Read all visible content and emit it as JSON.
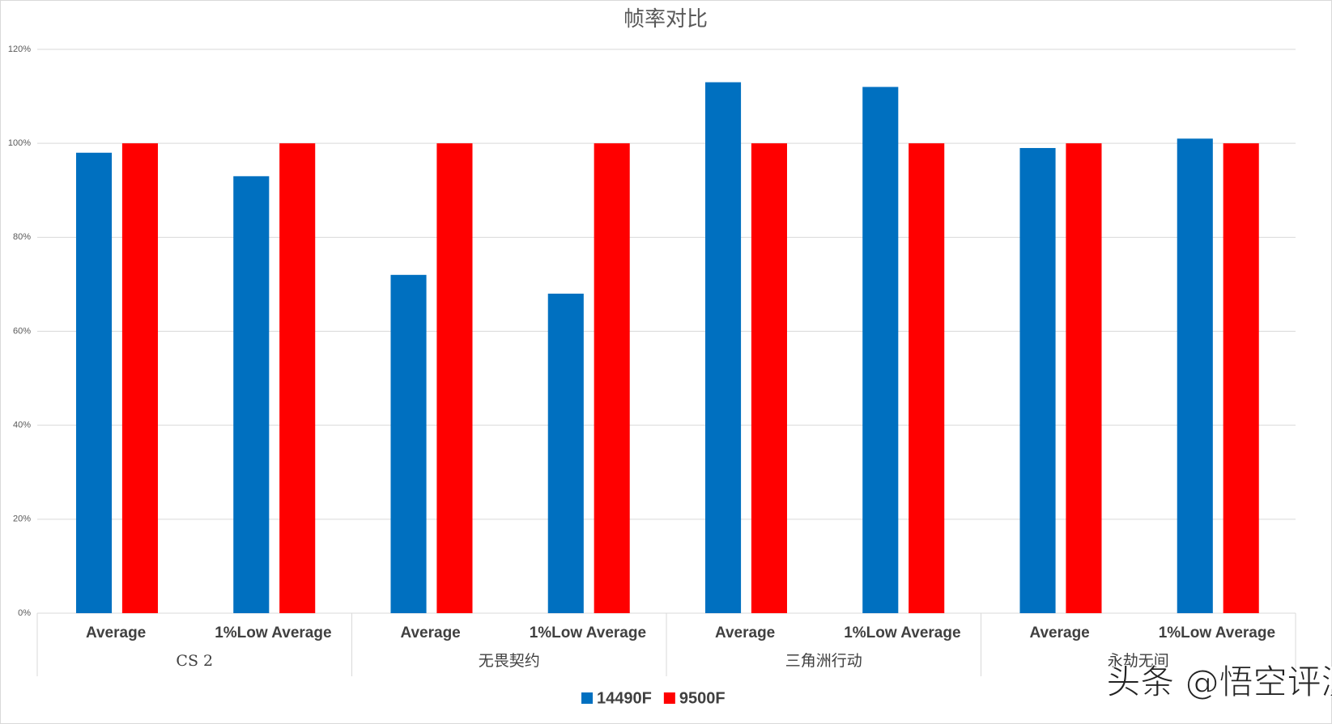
{
  "chart_data": {
    "type": "bar",
    "title": "帧率对比",
    "categories": [
      "Average",
      "1%Low Average",
      "Average",
      "1%Low Average",
      "Average",
      "1%Low Average",
      "Average",
      "1%Low Average"
    ],
    "groups": [
      "CS 2",
      "无畏契约",
      "三角洲行动",
      "永劫无间"
    ],
    "series": [
      {
        "name": "14490F",
        "color": "#0070c0",
        "values": [
          98,
          93,
          72,
          68,
          113,
          112,
          99,
          101
        ]
      },
      {
        "name": "9500F",
        "color": "#ff0000",
        "values": [
          100,
          100,
          100,
          100,
          100,
          100,
          100,
          100
        ]
      }
    ],
    "ylim": [
      0,
      120
    ],
    "yticks": [
      {
        "value": 0,
        "label": "0%"
      },
      {
        "value": 20,
        "label": "20%"
      },
      {
        "value": 40,
        "label": "40%"
      },
      {
        "value": 60,
        "label": "60%"
      },
      {
        "value": 80,
        "label": "80%"
      },
      {
        "value": 100,
        "label": "100%"
      },
      {
        "value": 120,
        "label": "120%"
      }
    ],
    "grid": true,
    "legend": "bottom"
  },
  "watermark": "头条 @悟空评测"
}
